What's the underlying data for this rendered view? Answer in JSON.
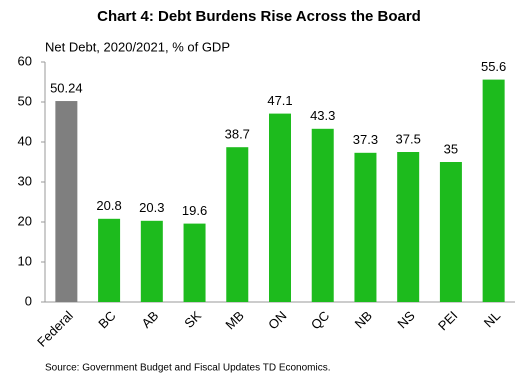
{
  "chart_data": {
    "type": "bar",
    "title": "Chart 4: Debt Burdens Rise Across the Board",
    "subtitle": "Net Debt, 2020/2021, % of GDP",
    "source": "Source: Government Budget and Fiscal Updates TD Economics.",
    "categories": [
      "Federal",
      "BC",
      "AB",
      "SK",
      "MB",
      "ON",
      "QC",
      "NB",
      "NS",
      "PEI",
      "NL"
    ],
    "values": [
      50.24,
      20.8,
      20.3,
      19.6,
      38.7,
      47.1,
      43.3,
      37.3,
      37.5,
      35,
      55.6
    ],
    "colors": [
      "#7f7f7f",
      "#1dbb1d",
      "#1dbb1d",
      "#1dbb1d",
      "#1dbb1d",
      "#1dbb1d",
      "#1dbb1d",
      "#1dbb1d",
      "#1dbb1d",
      "#1dbb1d",
      "#1dbb1d"
    ],
    "ylim": [
      0,
      60
    ],
    "yticks": [
      0,
      10,
      20,
      30,
      40,
      50,
      60
    ],
    "grid": false
  }
}
